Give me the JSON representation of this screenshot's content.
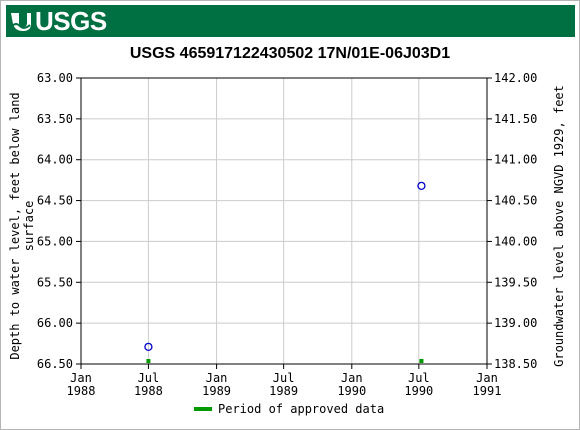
{
  "header": {
    "agency": "USGS"
  },
  "chart_data": {
    "type": "scatter",
    "title": "USGS 465917122430502 17N/01E-06J03D1",
    "ylabel_left": [
      "Depth to water level, feet below land",
      "surface"
    ],
    "ylabel_right": "Groundwater level above NGVD 1929, feet",
    "y_left_ticks": [
      "63.00",
      "63.50",
      "64.00",
      "64.50",
      "65.00",
      "65.50",
      "66.00",
      "66.50"
    ],
    "y_left_range": [
      63.0,
      66.5
    ],
    "y_right_ticks": [
      "142.00",
      "141.50",
      "141.00",
      "140.50",
      "140.00",
      "139.50",
      "139.00",
      "138.50"
    ],
    "y_right_range": [
      142.0,
      138.5
    ],
    "x_ticks": [
      {
        "line1": "Jan",
        "line2": "1988",
        "date": "1988-01-01"
      },
      {
        "line1": "Jul",
        "line2": "1988",
        "date": "1988-07-01"
      },
      {
        "line1": "Jan",
        "line2": "1989",
        "date": "1989-01-01"
      },
      {
        "line1": "Jul",
        "line2": "1989",
        "date": "1989-07-01"
      },
      {
        "line1": "Jan",
        "line2": "1990",
        "date": "1990-01-01"
      },
      {
        "line1": "Jul",
        "line2": "1990",
        "date": "1990-07-01"
      },
      {
        "line1": "Jan",
        "line2": "1991",
        "date": "1991-01-01"
      }
    ],
    "x_range": [
      "1988-01-01",
      "1991-01-01"
    ],
    "series": [
      {
        "points": [
          {
            "date": "1988-07-01",
            "y": 66.29
          },
          {
            "date": "1990-07-08",
            "y": 64.32
          }
        ],
        "color": "#0000cc",
        "marker": "circle-open"
      }
    ],
    "approved_periods": [
      {
        "date": "1988-07-01"
      },
      {
        "date": "1990-07-08"
      }
    ],
    "legend": {
      "label": "Period of approved data",
      "color": "#009900",
      "position": "bottom-center"
    },
    "grid": true
  }
}
